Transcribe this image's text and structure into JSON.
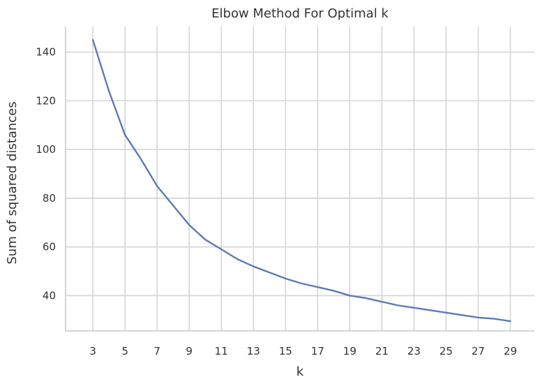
{
  "chart_data": {
    "type": "line",
    "title": "Elbow Method For Optimal k",
    "xlabel": "k",
    "ylabel": "Sum of squared distances",
    "xlim": [
      1.3,
      30.5
    ],
    "ylim": [
      25.5,
      150.5
    ],
    "xticks": [
      3,
      5,
      7,
      9,
      11,
      13,
      15,
      17,
      19,
      21,
      23,
      25,
      27,
      29
    ],
    "yticks": [
      40,
      60,
      80,
      100,
      120,
      140
    ],
    "grid": true,
    "x": [
      3,
      4,
      5,
      6,
      7,
      8,
      9,
      10,
      11,
      12,
      13,
      14,
      15,
      16,
      17,
      18,
      19,
      20,
      21,
      22,
      23,
      24,
      25,
      26,
      27,
      28,
      29
    ],
    "series": [
      {
        "name": "",
        "color": "#5b7bb5",
        "values": [
          145,
          124,
          106,
          96,
          85,
          77,
          69,
          63,
          59,
          55,
          52,
          49.5,
          47,
          45,
          43.5,
          42,
          40,
          39,
          37.5,
          36,
          35,
          34,
          33,
          32,
          31,
          30.5,
          29.5
        ]
      }
    ]
  }
}
